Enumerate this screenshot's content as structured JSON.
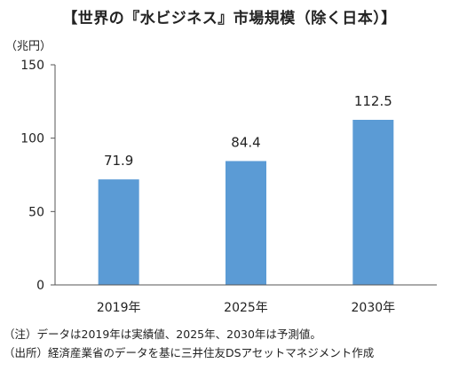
{
  "chart_data": {
    "type": "bar",
    "title": "【世界の『水ビジネス』市場規模（除く日本）】",
    "ylabel": "（兆円）",
    "xlabel": "",
    "categories": [
      "2019年",
      "2025年",
      "2030年"
    ],
    "values": [
      71.9,
      84.4,
      112.5
    ],
    "value_labels": [
      "71.9",
      "84.4",
      "112.5"
    ],
    "ylim": [
      0,
      150
    ],
    "yticks": [
      0,
      50,
      100,
      150
    ],
    "grid": false,
    "bar_color": "#5b9bd5"
  },
  "notes": [
    "（注）データは2019年は実績値、2025年、2030年は予測値。",
    "（出所）経済産業省のデータを基に三井住友DSアセットマネジメント作成"
  ]
}
